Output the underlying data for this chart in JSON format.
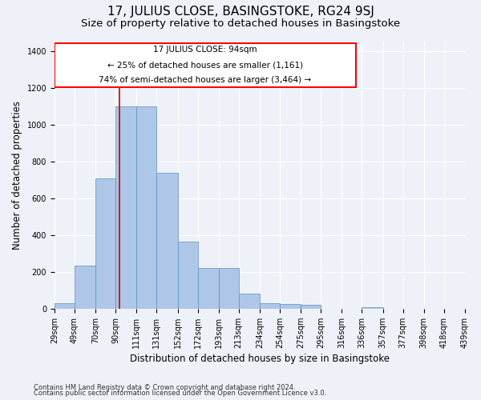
{
  "title": "17, JULIUS CLOSE, BASINGSTOKE, RG24 9SJ",
  "subtitle": "Size of property relative to detached houses in Basingstoke",
  "xlabel": "Distribution of detached houses by size in Basingstoke",
  "ylabel": "Number of detached properties",
  "footnote1": "Contains HM Land Registry data © Crown copyright and database right 2024.",
  "footnote2": "Contains public sector information licensed under the Open Government Licence v3.0.",
  "annotation_line1": "17 JULIUS CLOSE: 94sqm",
  "annotation_line2": "← 25% of detached houses are smaller (1,161)",
  "annotation_line3": "74% of semi-detached houses are larger (3,464) →",
  "bar_color": "#aec6e8",
  "bar_edge_color": "#5a8fc0",
  "vline_color": "#cc0000",
  "vline_x": 94,
  "bin_edges": [
    29,
    49,
    70,
    90,
    111,
    131,
    152,
    172,
    193,
    213,
    234,
    254,
    275,
    295,
    316,
    336,
    357,
    377,
    398,
    418,
    439
  ],
  "bar_heights": [
    30,
    235,
    710,
    1100,
    1100,
    740,
    365,
    220,
    220,
    80,
    30,
    25,
    20,
    0,
    0,
    10,
    0,
    0,
    0,
    0
  ],
  "ylim": [
    0,
    1450
  ],
  "yticks": [
    0,
    200,
    400,
    600,
    800,
    1000,
    1200,
    1400
  ],
  "bg_color": "#eef2f8",
  "plot_bg_color": "#eef2f8",
  "grid_color": "#ffffff",
  "title_fontsize": 11,
  "subtitle_fontsize": 9.5,
  "axis_label_fontsize": 8.5,
  "tick_fontsize": 7,
  "footnote_fontsize": 6,
  "annot_fontsize": 7.5
}
